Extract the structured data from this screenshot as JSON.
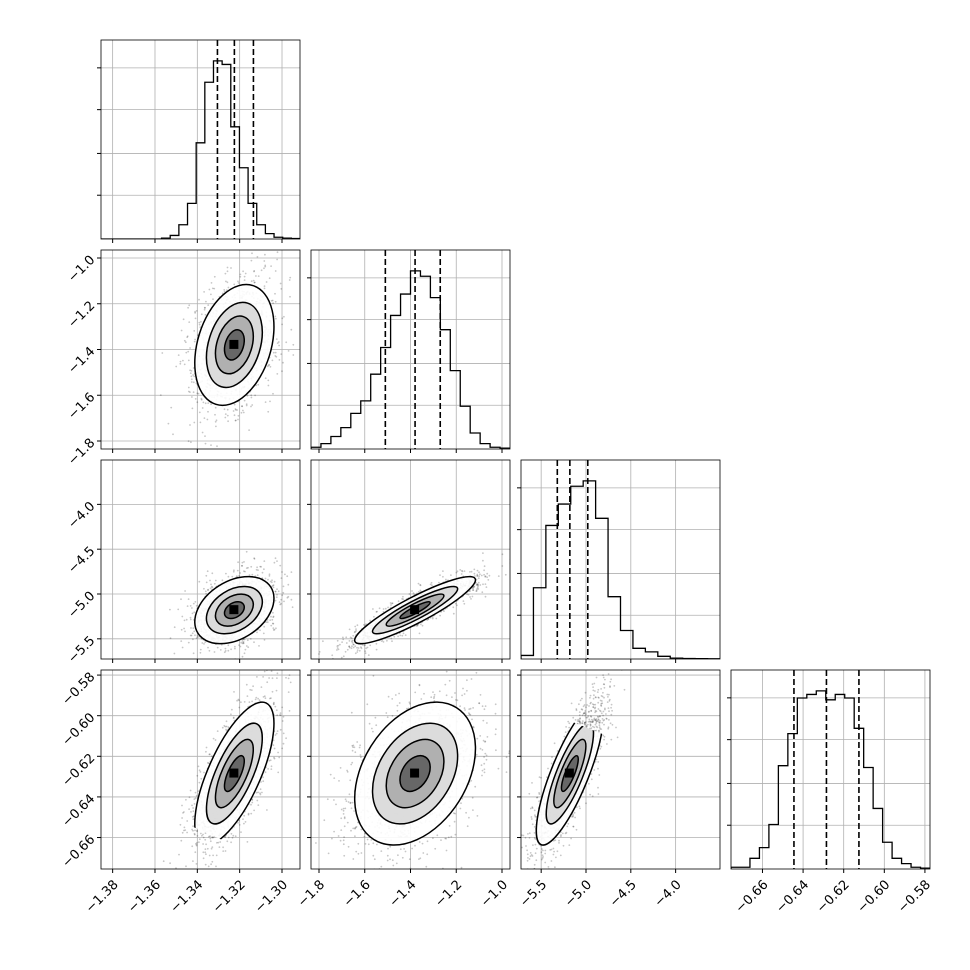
{
  "chart_data": {
    "type": "corner",
    "parameters": 4,
    "grid": true,
    "tick_labels": [
      [
        -1.38,
        -1.36,
        -1.34,
        -1.32,
        -1.3
      ],
      [
        -1.8,
        -1.6,
        -1.4,
        -1.2,
        -1.0
      ],
      [
        -5.5,
        -5.0,
        -4.5,
        -4.0
      ],
      [
        -0.66,
        -0.64,
        -0.62,
        -0.6,
        -0.58
      ]
    ],
    "y_tick_labels": {
      "1": [
        "−1.0",
        "−1.2",
        "−1.4",
        "−1.6",
        "−1.8"
      ],
      "2": [
        "−4.0",
        "−4.5",
        "−5.0",
        "−5.5"
      ],
      "3": [
        "−0.58",
        "−0.60",
        "−0.62",
        "−0.64",
        "−0.66"
      ]
    },
    "x_tick_labels": {
      "0": [
        "−1.38",
        "−1.36",
        "−1.34",
        "−1.32",
        "−1.30"
      ],
      "1": [
        "−1.8",
        "−1.6",
        "−1.4",
        "−1.2",
        "−1.0"
      ],
      "2": [
        "−5.5",
        "−5.0",
        "−4.5",
        "−4.0"
      ],
      "3": [
        "−0.66",
        "−0.64",
        "−0.62",
        "−0.60",
        "−0.58"
      ]
    },
    "ranges": [
      [
        -1.3855,
        -1.2915
      ],
      [
        -1.835,
        -0.965
      ],
      [
        -5.725,
        -3.505
      ],
      [
        -0.6755,
        -0.5775
      ]
    ],
    "quantiles": [
      [
        -1.3305,
        -1.3225,
        -1.3135
      ],
      [
        -1.51,
        -1.38,
        -1.27
      ],
      [
        -5.32,
        -5.18,
        -4.98
      ],
      [
        -0.6445,
        -0.6285,
        -0.6125
      ]
    ],
    "histograms": [
      [
        0,
        0,
        0,
        0,
        0,
        0,
        0,
        0.005,
        0.02,
        0.08,
        0.2,
        0.54,
        0.88,
        1.0,
        0.98,
        0.63,
        0.4,
        0.2,
        0.08,
        0.03,
        0.01,
        0.005,
        0.003
      ],
      [
        0.01,
        0.03,
        0.07,
        0.12,
        0.2,
        0.27,
        0.42,
        0.57,
        0.75,
        0.87,
        1.0,
        0.97,
        0.85,
        0.67,
        0.44,
        0.24,
        0.09,
        0.03,
        0.01,
        0.005
      ],
      [
        0.02,
        0.4,
        0.75,
        0.87,
        0.97,
        1.0,
        0.79,
        0.35,
        0.16,
        0.06,
        0.04,
        0.015,
        0.005,
        0.003,
        0.002,
        0.001
      ],
      [
        0.01,
        0.01,
        0.06,
        0.12,
        0.25,
        0.58,
        0.76,
        0.96,
        0.98,
        1.0,
        0.95,
        0.98,
        0.96,
        0.79,
        0.57,
        0.34,
        0.15,
        0.06,
        0.03,
        0.01,
        0.005
      ]
    ],
    "pair_correlations": {
      "1-0": 0.3,
      "2-0": 0.35,
      "2-1": 0.9,
      "3-0": 0.7,
      "3-1": 0.35,
      "3-2": 0.8
    }
  }
}
